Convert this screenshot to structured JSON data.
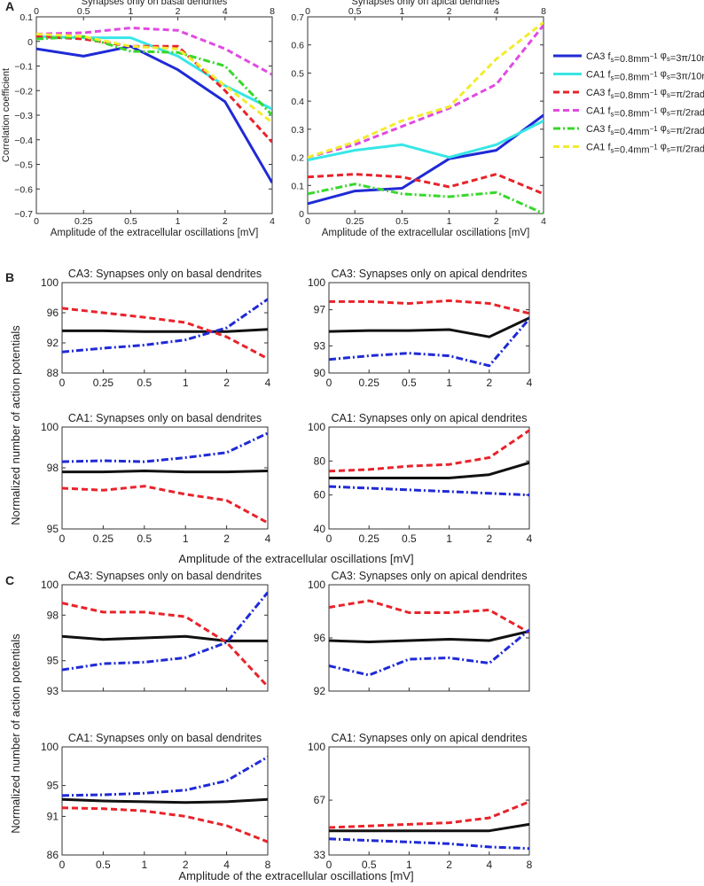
{
  "panel_letters": [
    "A",
    "B",
    "C"
  ],
  "colors": {
    "blue_solid": "#1f2ad6",
    "cyan_solid": "#38e6e6",
    "red_dashed": "#e8232a",
    "magenta_dashed": "#e04be0",
    "green_dashdot": "#37d72b",
    "yellow_dashed": "#f2ec2e",
    "black": "#111111",
    "blue_dashdot": "#1f2ad6"
  },
  "legend": [
    {
      "cell": "CA3",
      "f": "0.8",
      "phi": "3π/10",
      "color": "#1f2ad6",
      "dash": "solid"
    },
    {
      "cell": "CA1",
      "f": "0.8",
      "phi": "3π/10",
      "color": "#38e6e6",
      "dash": "solid"
    },
    {
      "cell": "CA3",
      "f": "0.8",
      "phi": "π/2",
      "color": "#e8232a",
      "dash": "dashed"
    },
    {
      "cell": "CA1",
      "f": "0.8",
      "phi": "π/2",
      "color": "#e04be0",
      "dash": "dashed"
    },
    {
      "cell": "CA3",
      "f": "0.4",
      "phi": "π/2",
      "color": "#37d72b",
      "dash": "dashdot"
    },
    {
      "cell": "CA1",
      "f": "0.4",
      "phi": "π/2",
      "color": "#f2ec2e",
      "dash": "dashed"
    }
  ],
  "legend_text": {
    "f_unit": "mm",
    "f_exp": "−1",
    "phi_unit": "rad"
  },
  "chart_data": [
    {
      "id": "A_left",
      "panel": "A",
      "type": "line",
      "title": "",
      "top_label": "Synapses only on basal dendrites",
      "top_ticks": [
        "0",
        "0.5",
        "1",
        "2",
        "4",
        "8"
      ],
      "xlabel": "Amplitude of the extracellular oscillations [mV]",
      "ylabel": "Correlation coefficient",
      "categories": [
        "0",
        "0.25",
        "0.5",
        "1",
        "2",
        "4"
      ],
      "ylim": [
        -0.7,
        0.1
      ],
      "yticks": [
        -0.7,
        -0.6,
        -0.5,
        -0.4,
        -0.3,
        -0.2,
        -0.1,
        0,
        0.1
      ],
      "ytick_labels": [
        "−0.7",
        "−0.6",
        "−0.5",
        "−0.4",
        "−0.3",
        "−0.2",
        "−0.1",
        "0",
        "0.1"
      ],
      "series": [
        {
          "name": "CA3 f=0.8 phi=3pi/10",
          "color": "#1f2ad6",
          "dash": "solid",
          "values": [
            -0.03,
            -0.06,
            -0.02,
            -0.115,
            -0.245,
            -0.575
          ]
        },
        {
          "name": "CA1 f=0.8 phi=3pi/10",
          "color": "#38e6e6",
          "dash": "solid",
          "values": [
            0.02,
            0.015,
            0.015,
            -0.06,
            -0.18,
            -0.275
          ]
        },
        {
          "name": "CA3 f=0.8 phi=pi/2",
          "color": "#e8232a",
          "dash": "dashed",
          "values": [
            0.02,
            0.01,
            -0.02,
            -0.02,
            -0.2,
            -0.41
          ]
        },
        {
          "name": "CA1 f=0.8 phi=pi/2",
          "color": "#e04be0",
          "dash": "dashed",
          "values": [
            0.03,
            0.035,
            0.055,
            0.045,
            -0.03,
            -0.135
          ]
        },
        {
          "name": "CA3 f=0.4 phi=pi/2",
          "color": "#37d72b",
          "dash": "dashdot",
          "values": [
            0.01,
            0.02,
            -0.04,
            -0.045,
            -0.1,
            -0.3
          ]
        },
        {
          "name": "CA1 f=0.4 phi=pi/2",
          "color": "#f2ec2e",
          "dash": "dashed",
          "values": [
            0.03,
            0.02,
            -0.02,
            -0.03,
            -0.18,
            -0.33
          ]
        }
      ]
    },
    {
      "id": "A_right",
      "panel": "A",
      "type": "line",
      "title": "",
      "top_label": "Synapses only on apical dendrites",
      "top_ticks": [
        "0",
        "0.5",
        "1",
        "2",
        "4",
        "8"
      ],
      "xlabel": "Amplitude of the extracellular oscillations [mV]",
      "ylabel": "",
      "categories": [
        "0",
        "0.25",
        "0.5",
        "1",
        "2",
        "4"
      ],
      "ylim": [
        0,
        0.7
      ],
      "yticks": [
        0,
        0.1,
        0.2,
        0.3,
        0.4,
        0.5,
        0.6,
        0.7
      ],
      "ytick_labels": [
        "0",
        "0.1",
        "0.2",
        "0.3",
        "0.4",
        "0.5",
        "0.6",
        "0.7"
      ],
      "series": [
        {
          "name": "CA3 f=0.8 phi=3pi/10",
          "color": "#1f2ad6",
          "dash": "solid",
          "values": [
            0.035,
            0.08,
            0.09,
            0.195,
            0.225,
            0.35
          ]
        },
        {
          "name": "CA1 f=0.8 phi=3pi/10",
          "color": "#38e6e6",
          "dash": "solid",
          "values": [
            0.19,
            0.225,
            0.245,
            0.2,
            0.245,
            0.33
          ]
        },
        {
          "name": "CA3 f=0.8 phi=pi/2",
          "color": "#e8232a",
          "dash": "dashed",
          "values": [
            0.13,
            0.14,
            0.13,
            0.095,
            0.14,
            0.07
          ]
        },
        {
          "name": "CA1 f=0.8 phi=pi/2",
          "color": "#e04be0",
          "dash": "dashed",
          "values": [
            0.2,
            0.245,
            0.31,
            0.375,
            0.46,
            0.67
          ]
        },
        {
          "name": "CA3 f=0.4 phi=pi/2",
          "color": "#37d72b",
          "dash": "dashdot",
          "values": [
            0.07,
            0.105,
            0.07,
            0.06,
            0.075,
            0.0
          ]
        },
        {
          "name": "CA1 f=0.4 phi=pi/2",
          "color": "#f2ec2e",
          "dash": "dashed",
          "values": [
            0.2,
            0.255,
            0.33,
            0.38,
            0.55,
            0.68
          ]
        }
      ]
    },
    {
      "id": "B1",
      "panel": "B",
      "type": "line",
      "title": "CA3: Synapses only on basal dendrites",
      "xlabel": "",
      "ylabel": "",
      "categories": [
        "0",
        "0.25",
        "0.5",
        "1",
        "2",
        "4"
      ],
      "show_xticklabels": true,
      "ylim": [
        88,
        100
      ],
      "yticks": [
        88,
        92,
        96,
        100
      ],
      "ytick_labels": [
        "88",
        "92",
        "96",
        "100"
      ],
      "series": [
        {
          "name": "black",
          "color": "#111111",
          "dash": "solid",
          "values": [
            93.6,
            93.6,
            93.5,
            93.5,
            93.5,
            93.8
          ]
        },
        {
          "name": "red",
          "color": "#e8232a",
          "dash": "dashed",
          "values": [
            96.6,
            96.0,
            95.4,
            94.7,
            92.8,
            89.9
          ]
        },
        {
          "name": "blue",
          "color": "#1f2ad6",
          "dash": "dashdot",
          "values": [
            90.8,
            91.3,
            91.7,
            92.4,
            94.0,
            97.8
          ]
        }
      ]
    },
    {
      "id": "B2",
      "panel": "B",
      "type": "line",
      "title": "CA3: Synapses only on apical dendrites",
      "xlabel": "",
      "ylabel": "",
      "categories": [
        "0",
        "0.25",
        "0.5",
        "1",
        "2",
        "4"
      ],
      "show_xticklabels": true,
      "ylim": [
        90,
        100
      ],
      "yticks": [
        90,
        93,
        97,
        100
      ],
      "ytick_labels": [
        "90",
        "93",
        "97",
        "100"
      ],
      "series": [
        {
          "name": "black",
          "color": "#111111",
          "dash": "solid",
          "values": [
            94.6,
            94.7,
            94.7,
            94.8,
            94.0,
            96.1
          ]
        },
        {
          "name": "red",
          "color": "#e8232a",
          "dash": "dashed",
          "values": [
            97.9,
            97.9,
            97.7,
            98.0,
            97.7,
            96.6
          ]
        },
        {
          "name": "blue",
          "color": "#1f2ad6",
          "dash": "dashdot",
          "values": [
            91.5,
            91.9,
            92.2,
            91.9,
            90.8,
            96.0
          ]
        }
      ]
    },
    {
      "id": "B3",
      "panel": "B",
      "type": "line",
      "title": "CA1: Synapses only on basal dendrites",
      "xlabel": "",
      "ylabel": "",
      "categories": [
        "0",
        "0.25",
        "0.5",
        "1",
        "2",
        "4"
      ],
      "show_xticklabels": true,
      "ylim": [
        95,
        100
      ],
      "yticks": [
        95,
        98,
        100
      ],
      "ytick_labels": [
        "95",
        "98",
        "100"
      ],
      "series": [
        {
          "name": "black",
          "color": "#111111",
          "dash": "solid",
          "values": [
            97.8,
            97.8,
            97.85,
            97.8,
            97.8,
            97.85
          ]
        },
        {
          "name": "red",
          "color": "#e8232a",
          "dash": "dashed",
          "values": [
            97.0,
            96.9,
            97.1,
            96.7,
            96.4,
            95.3
          ]
        },
        {
          "name": "blue",
          "color": "#1f2ad6",
          "dash": "dashdot",
          "values": [
            98.3,
            98.35,
            98.3,
            98.5,
            98.75,
            99.7
          ]
        }
      ]
    },
    {
      "id": "B4",
      "panel": "B",
      "type": "line",
      "title": "CA1: Synapses only on apical dendrites",
      "xlabel": "",
      "ylabel": "",
      "categories": [
        "0",
        "0.25",
        "0.5",
        "1",
        "2",
        "4"
      ],
      "show_xticklabels": true,
      "ylim": [
        40,
        100
      ],
      "yticks": [
        40,
        60,
        80,
        100
      ],
      "ytick_labels": [
        "40",
        "60",
        "80",
        "100"
      ],
      "series": [
        {
          "name": "black",
          "color": "#111111",
          "dash": "solid",
          "values": [
            70,
            70,
            70,
            70,
            72,
            79
          ]
        },
        {
          "name": "red",
          "color": "#e8232a",
          "dash": "dashed",
          "values": [
            74,
            75,
            77,
            78,
            82,
            98
          ]
        },
        {
          "name": "blue",
          "color": "#1f2ad6",
          "dash": "dashdot",
          "values": [
            65,
            64,
            63,
            62,
            61,
            60
          ]
        }
      ]
    },
    {
      "id": "C1",
      "panel": "C",
      "type": "line",
      "title": "CA3: Synapses only on basal dendrites",
      "xlabel": "",
      "ylabel": "",
      "categories": [
        "0",
        "0.5",
        "1",
        "2",
        "4",
        "8"
      ],
      "show_xticklabels": false,
      "ylim": [
        93,
        100
      ],
      "yticks": [
        93,
        95,
        98,
        100
      ],
      "ytick_labels": [
        "93",
        "95",
        "98",
        "100"
      ],
      "series": [
        {
          "name": "black",
          "color": "#111111",
          "dash": "solid",
          "values": [
            96.6,
            96.4,
            96.5,
            96.6,
            96.3,
            96.3
          ]
        },
        {
          "name": "red",
          "color": "#e8232a",
          "dash": "dashed",
          "values": [
            98.8,
            98.2,
            98.2,
            97.9,
            96.2,
            93.3
          ]
        },
        {
          "name": "blue",
          "color": "#1f2ad6",
          "dash": "dashdot",
          "values": [
            94.4,
            94.8,
            94.9,
            95.2,
            96.2,
            99.5
          ]
        }
      ]
    },
    {
      "id": "C2",
      "panel": "C",
      "type": "line",
      "title": "CA3: Synapses only on apical dendrites",
      "xlabel": "",
      "ylabel": "",
      "categories": [
        "0",
        "0.5",
        "1",
        "2",
        "4",
        "8"
      ],
      "show_xticklabels": false,
      "ylim": [
        92,
        100
      ],
      "yticks": [
        92,
        96,
        100
      ],
      "ytick_labels": [
        "92",
        "96",
        "100"
      ],
      "series": [
        {
          "name": "black",
          "color": "#111111",
          "dash": "solid",
          "values": [
            95.8,
            95.7,
            95.8,
            95.9,
            95.8,
            96.5
          ]
        },
        {
          "name": "red",
          "color": "#e8232a",
          "dash": "dashed",
          "values": [
            98.3,
            98.8,
            97.9,
            97.9,
            98.1,
            96.4
          ]
        },
        {
          "name": "blue",
          "color": "#1f2ad6",
          "dash": "dashdot",
          "values": [
            93.9,
            93.2,
            94.4,
            94.5,
            94.1,
            96.6
          ]
        }
      ]
    },
    {
      "id": "C3",
      "panel": "C",
      "type": "line",
      "title": "CA1: Synapses only on basal dendrites",
      "xlabel": "",
      "ylabel": "",
      "categories": [
        "0",
        "0.5",
        "1",
        "2",
        "4",
        "8"
      ],
      "show_xticklabels": true,
      "ylim": [
        86,
        100
      ],
      "yticks": [
        86,
        91,
        95,
        100
      ],
      "ytick_labels": [
        "86",
        "91",
        "95",
        "100"
      ],
      "series": [
        {
          "name": "black",
          "color": "#111111",
          "dash": "solid",
          "values": [
            93.2,
            93.0,
            92.9,
            92.8,
            92.9,
            93.2
          ]
        },
        {
          "name": "red",
          "color": "#e8232a",
          "dash": "dashed",
          "values": [
            92.1,
            92.0,
            91.7,
            91.0,
            89.8,
            87.7
          ]
        },
        {
          "name": "blue",
          "color": "#1f2ad6",
          "dash": "dashdot",
          "values": [
            93.7,
            93.8,
            94.0,
            94.4,
            95.6,
            98.7
          ]
        }
      ]
    },
    {
      "id": "C4",
      "panel": "C",
      "type": "line",
      "title": "CA1: Synapses only on apical dendrites",
      "xlabel": "",
      "ylabel": "",
      "categories": [
        "0",
        "0.5",
        "1",
        "2",
        "4",
        "8"
      ],
      "show_xticklabels": true,
      "ylim": [
        33,
        100
      ],
      "yticks": [
        33,
        67,
        100
      ],
      "ytick_labels": [
        "33",
        "67",
        "100"
      ],
      "series": [
        {
          "name": "black",
          "color": "#111111",
          "dash": "solid",
          "values": [
            48,
            48,
            48,
            48,
            48,
            52
          ]
        },
        {
          "name": "red",
          "color": "#e8232a",
          "dash": "dashed",
          "values": [
            50,
            51,
            52,
            53,
            56,
            66
          ]
        },
        {
          "name": "blue",
          "color": "#1f2ad6",
          "dash": "dashdot",
          "values": [
            43,
            42,
            41,
            40,
            38,
            37
          ]
        }
      ]
    }
  ],
  "shared_labels": {
    "B_ylabel": "Normalized number of action potentials",
    "B_xlabel": "Amplitude of the extracellular oscillations [mV]",
    "C_ylabel": "Normalized number of action potentials",
    "C_xlabel": "Amplitude of the extracellular oscillations [mV]"
  }
}
